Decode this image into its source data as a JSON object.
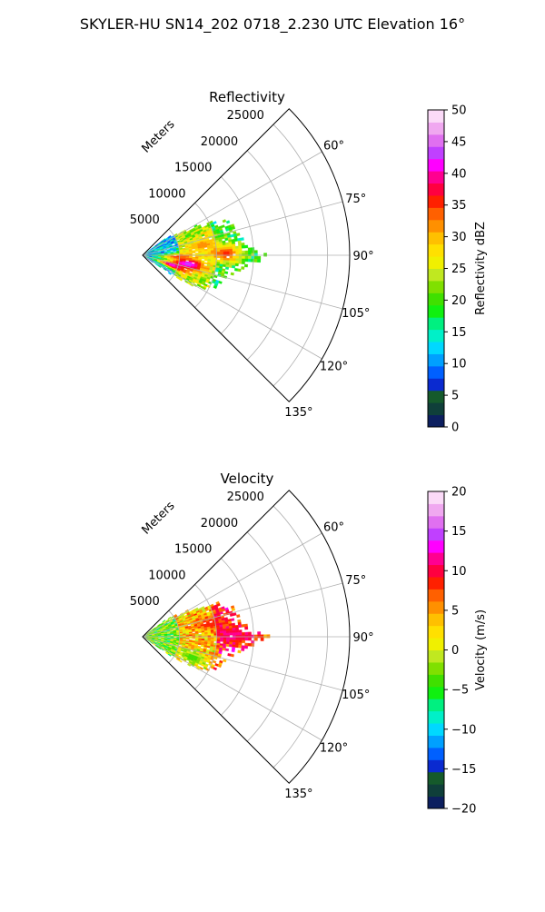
{
  "suptitle": "SKYLER-HU  SN14_202  0718_2.230 UTC Elevation 16°",
  "chart_data": [
    {
      "type": "polar-sector-heatmap",
      "title": "Reflectivity",
      "radial_label": "Meters",
      "radial_ticks": [
        5000,
        10000,
        15000,
        20000,
        25000
      ],
      "radial_tick_labels": [
        "5000",
        "10000",
        "15000",
        "20000",
        "25000"
      ],
      "r_max_m": 28000,
      "theta_range_deg": [
        45,
        135
      ],
      "theta_ticks_deg": [
        60,
        75,
        90,
        105,
        120,
        135
      ],
      "theta_tick_labels": [
        "60°",
        "75°",
        "90°",
        "105°",
        "120°",
        "135°"
      ],
      "theta_gridlines_deg": [
        45,
        60,
        75,
        90,
        105,
        120,
        135
      ],
      "grid": true,
      "colorbar": {
        "label": "Reflectivity dBZ",
        "min": 0,
        "max": 50,
        "ticks": [
          0,
          5,
          10,
          15,
          20,
          25,
          30,
          35,
          40,
          45,
          50
        ],
        "tick_labels": [
          "0",
          "5",
          "10",
          "15",
          "20",
          "25",
          "30",
          "35",
          "40",
          "45",
          "50"
        ],
        "colors": [
          "#0c1f5f",
          "#0f3f3a",
          "#155a2b",
          "#0a2ad0",
          "#0060ff",
          "#00a0ff",
          "#00d8ff",
          "#00f0c8",
          "#00f080",
          "#10f010",
          "#40e000",
          "#80e000",
          "#c0e820",
          "#f0f000",
          "#ffe000",
          "#ffc000",
          "#ff9000",
          "#ff6000",
          "#ff2000",
          "#ff0040",
          "#ff0090",
          "#ff00ff",
          "#c040ff",
          "#e070f0",
          "#f0a8f0",
          "#fbdaf8"
        ]
      },
      "echo_extent": {
        "theta_deg": [
          53,
          125
        ],
        "r_max_m": [
          10000,
          17500
        ],
        "r_max_by_theta": [
          [
            53,
            3000
          ],
          [
            60,
            7000
          ],
          [
            65,
            11000
          ],
          [
            70,
            13000
          ],
          [
            75,
            12500
          ],
          [
            80,
            13500
          ],
          [
            85,
            14000
          ],
          [
            90,
            17000
          ],
          [
            95,
            14500
          ],
          [
            100,
            13000
          ],
          [
            105,
            11500
          ],
          [
            110,
            11000
          ],
          [
            115,
            10500
          ],
          [
            120,
            9000
          ],
          [
            125,
            3500
          ]
        ],
        "range_deg_values": [
          [
            0,
            5000,
            12
          ],
          [
            5000,
            10000,
            24
          ],
          [
            10000,
            17500,
            18
          ]
        ],
        "hotspots": [
          {
            "theta_deg": 88,
            "r_m": 11000,
            "value_dbz": 36
          },
          {
            "theta_deg": 100,
            "r_m": 6000,
            "value_dbz": 45
          },
          {
            "theta_deg": 92,
            "r_m": 4500,
            "value_dbz": 35
          },
          {
            "theta_deg": 108,
            "r_m": 4000,
            "value_dbz": 42
          },
          {
            "theta_deg": 80,
            "r_m": 8000,
            "value_dbz": 32
          }
        ]
      }
    },
    {
      "type": "polar-sector-heatmap",
      "title": "Velocity",
      "radial_label": "Meters",
      "radial_ticks": [
        5000,
        10000,
        15000,
        20000,
        25000
      ],
      "radial_tick_labels": [
        "5000",
        "10000",
        "15000",
        "20000",
        "25000"
      ],
      "r_max_m": 28000,
      "theta_range_deg": [
        45,
        135
      ],
      "theta_ticks_deg": [
        60,
        75,
        90,
        105,
        120,
        135
      ],
      "theta_tick_labels": [
        "60°",
        "75°",
        "90°",
        "105°",
        "120°",
        "135°"
      ],
      "theta_gridlines_deg": [
        45,
        60,
        75,
        90,
        105,
        120,
        135
      ],
      "grid": true,
      "colorbar": {
        "label": "Velocity (m/s)",
        "min": -20,
        "max": 20,
        "ticks": [
          -20,
          -15,
          -10,
          -5,
          0,
          5,
          10,
          15,
          20
        ],
        "tick_labels": [
          "−20",
          "−15",
          "−10",
          "−5",
          "0",
          "5",
          "10",
          "15",
          "20"
        ],
        "colors": [
          "#0c1f5f",
          "#0f3f3a",
          "#155a2b",
          "#0a2ad0",
          "#0060ff",
          "#00a0ff",
          "#00d8ff",
          "#00f0c8",
          "#00f080",
          "#10f010",
          "#40e000",
          "#80e000",
          "#c0e820",
          "#f0f000",
          "#ffe000",
          "#ffc000",
          "#ff9000",
          "#ff6000",
          "#ff2000",
          "#ff0040",
          "#ff0090",
          "#ff00ff",
          "#c040ff",
          "#e070f0",
          "#f0a8f0",
          "#fbdaf8"
        ]
      },
      "echo_extent": {
        "theta_deg": [
          53,
          125
        ],
        "r_max_by_theta": [
          [
            53,
            3000
          ],
          [
            60,
            7000
          ],
          [
            65,
            11000
          ],
          [
            70,
            13000
          ],
          [
            75,
            12500
          ],
          [
            80,
            13500
          ],
          [
            85,
            14000
          ],
          [
            90,
            17000
          ],
          [
            95,
            14500
          ],
          [
            100,
            13000
          ],
          [
            105,
            11500
          ],
          [
            110,
            11000
          ],
          [
            115,
            10500
          ],
          [
            120,
            9000
          ],
          [
            125,
            3500
          ]
        ],
        "range_ms_values": [
          [
            0,
            5000,
            -3
          ],
          [
            5000,
            10000,
            3
          ],
          [
            10000,
            17500,
            8
          ]
        ],
        "hotspots": [
          {
            "theta_deg": 88,
            "r_m": 12000,
            "value_ms": 11
          },
          {
            "theta_deg": 78,
            "r_m": 9000,
            "value_ms": 9
          },
          {
            "theta_deg": 112,
            "r_m": 7000,
            "value_ms": -4
          }
        ]
      }
    }
  ]
}
